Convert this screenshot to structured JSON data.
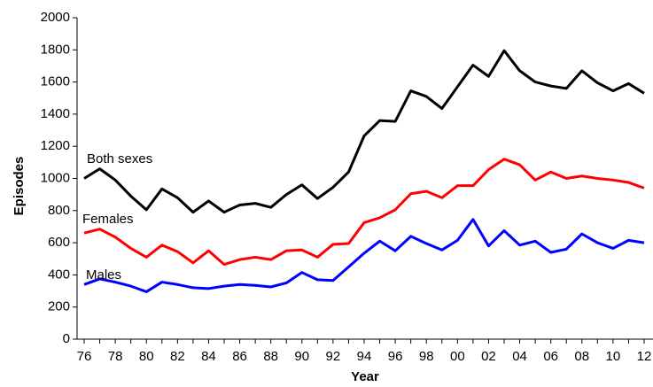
{
  "chart_data": {
    "type": "line",
    "x_label": "Year",
    "y_label": "Episodes",
    "categories": [
      "76",
      null,
      "78",
      null,
      "80",
      null,
      "82",
      null,
      "84",
      null,
      "86",
      null,
      "88",
      null,
      "90",
      null,
      "92",
      null,
      "94",
      null,
      "96",
      null,
      "98",
      null,
      "00",
      null,
      "02",
      null,
      "04",
      null,
      "06",
      null,
      "08",
      null,
      "10",
      null,
      "12"
    ],
    "series": [
      {
        "name": "Both sexes",
        "color": "#000000",
        "values": [
          1000,
          1060,
          990,
          890,
          805,
          935,
          880,
          790,
          860,
          790,
          835,
          845,
          820,
          900,
          960,
          875,
          945,
          1040,
          1265,
          1360,
          1355,
          1545,
          1510,
          1435,
          1570,
          1705,
          1635,
          1795,
          1670,
          1600,
          1575,
          1560,
          1670,
          1595,
          1545,
          1590,
          1530
        ]
      },
      {
        "name": "Females",
        "color": "#ff0000",
        "values": [
          660,
          685,
          635,
          565,
          510,
          585,
          545,
          475,
          550,
          465,
          495,
          510,
          495,
          550,
          555,
          510,
          590,
          595,
          725,
          755,
          805,
          905,
          920,
          880,
          955,
          955,
          1055,
          1120,
          1085,
          990,
          1040,
          1000,
          1015,
          1000,
          990,
          975,
          940
        ]
      },
      {
        "name": "Males",
        "color": "#0000ff",
        "values": [
          340,
          375,
          355,
          330,
          295,
          355,
          340,
          320,
          315,
          330,
          340,
          335,
          325,
          350,
          415,
          370,
          365,
          450,
          535,
          610,
          550,
          640,
          595,
          555,
          615,
          745,
          580,
          675,
          585,
          610,
          540,
          560,
          655,
          600,
          565,
          615,
          600
        ]
      }
    ],
    "ylim": [
      0,
      2000
    ],
    "yticks": [
      0,
      200,
      400,
      600,
      800,
      1000,
      1200,
      1400,
      1600,
      1800,
      2000
    ],
    "grid": false
  }
}
